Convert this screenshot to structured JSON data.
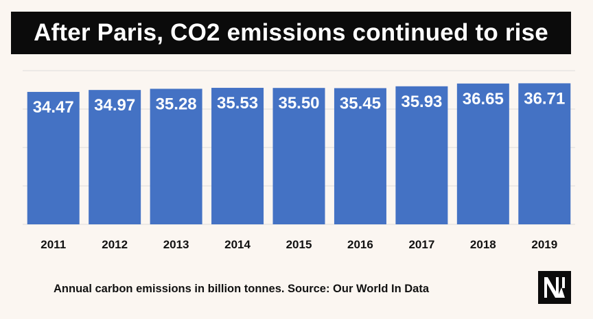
{
  "title": "After Paris, CO2 emissions continued to rise",
  "caption": "Annual carbon emissions in billion tonnes. Source: Our World In Data",
  "logo_icon": "nm-logo-icon",
  "colors": {
    "background": "#fbf6f1",
    "title_bar": "#0b0b0b",
    "bar": "#4472c4",
    "grid": "#dcdcdc",
    "label": "#ffffff",
    "tick": "#111111"
  },
  "chart_data": {
    "type": "bar",
    "title": "After Paris, CO2 emissions continued to rise",
    "xlabel": "",
    "ylabel": "",
    "categories": [
      "2011",
      "2012",
      "2013",
      "2014",
      "2015",
      "2016",
      "2017",
      "2018",
      "2019"
    ],
    "values": [
      34.47,
      34.97,
      35.28,
      35.53,
      35.5,
      35.45,
      35.93,
      36.65,
      36.71
    ],
    "ylim": [
      0,
      40
    ],
    "grid": true,
    "legend": "none",
    "data_labels": "inside-top"
  }
}
